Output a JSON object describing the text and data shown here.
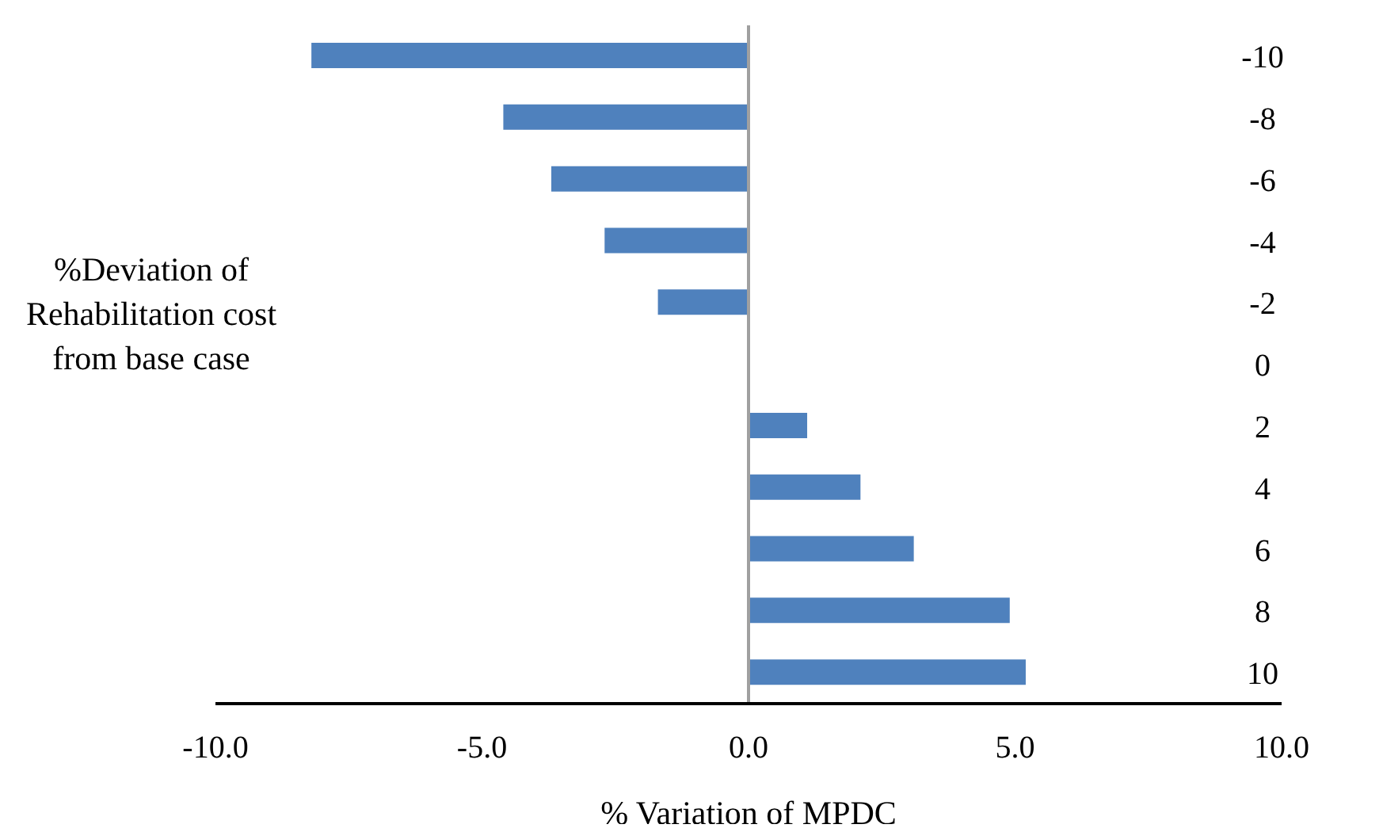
{
  "chart_data": {
    "type": "bar",
    "orientation": "horizontal",
    "xlabel": "% Variation of MPDC",
    "ylabel": "%Deviation of Rehabilitation cost from base case",
    "categories": [
      "-10",
      "-8",
      "-6",
      "-4",
      "-2",
      "0",
      "2",
      "4",
      "6",
      "8",
      "10"
    ],
    "series": [
      {
        "color": "#4f81bd",
        "values": [
          -8.2,
          -4.6,
          -3.7,
          -2.7,
          -1.7,
          null,
          1.1,
          2.1,
          3.1,
          4.9,
          5.2
        ]
      }
    ],
    "xlim": [
      -10,
      10
    ],
    "xticks": [
      {
        "value": -10,
        "label": "-10.0"
      },
      {
        "value": -5,
        "label": "-5.0"
      },
      {
        "value": 0,
        "label": "0.0"
      },
      {
        "value": 5,
        "label": "5.0"
      },
      {
        "value": 10,
        "label": "10.0"
      }
    ],
    "ref_lines": [
      {
        "axis": "x",
        "value": 0,
        "color": "#a0a0a0"
      }
    ],
    "grid": false,
    "legend": false
  }
}
